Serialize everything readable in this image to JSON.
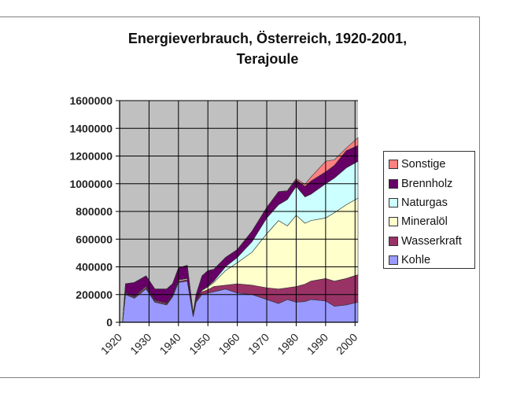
{
  "chart_data": {
    "type": "area",
    "stacked": true,
    "title": "Energieverbrauch, Österreich, 1920-2001, Terajoule",
    "title_lines": [
      "Energieverbrauch, Österreich, 1920-2001,",
      "Terajoule"
    ],
    "xlabel": "",
    "ylabel": "",
    "xlim": [
      1920,
      2001
    ],
    "ylim": [
      0,
      1600000
    ],
    "x_ticks": [
      "1920",
      "1930",
      "1940",
      "1950",
      "1960",
      "1970",
      "1980",
      "1990",
      "2000"
    ],
    "y_ticks": [
      "0",
      "200000",
      "400000",
      "600000",
      "800000",
      "1000000",
      "1200000",
      "1400000",
      "1600000"
    ],
    "grid": true,
    "plot_background": "#C0C0C0",
    "legend_position": "right",
    "x": [
      1920,
      1921,
      1922,
      1925,
      1929,
      1932,
      1936,
      1938,
      1940,
      1943,
      1945,
      1946,
      1948,
      1950,
      1952,
      1956,
      1960,
      1965,
      1970,
      1974,
      1977,
      1980,
      1983,
      1985,
      1990,
      1993,
      1997,
      2001
    ],
    "series": [
      {
        "name": "Kohle",
        "color": "#9999FF",
        "values": [
          0,
          0,
          200000,
          173000,
          240000,
          145000,
          125000,
          183000,
          287000,
          297000,
          40000,
          145000,
          200000,
          210000,
          220000,
          240000,
          211000,
          200000,
          164000,
          135000,
          164000,
          145000,
          150000,
          164000,
          154000,
          116000,
          125000,
          145000
        ]
      },
      {
        "name": "Wasserkraft",
        "color": "#993366",
        "values": [
          0,
          0,
          8000,
          8000,
          10000,
          8000,
          8000,
          8000,
          10000,
          10000,
          5000,
          8000,
          20000,
          25000,
          38000,
          28000,
          67000,
          68000,
          85000,
          105000,
          85000,
          113000,
          125000,
          133000,
          162000,
          181000,
          191000,
          199000
        ]
      },
      {
        "name": "Mineralöl",
        "color": "#FFFFCC",
        "values": [
          0,
          0,
          5000,
          5000,
          8000,
          5000,
          5000,
          5000,
          8000,
          8000,
          3000,
          5000,
          10000,
          20000,
          29000,
          105000,
          152000,
          238000,
          390000,
          494000,
          447000,
          514000,
          440000,
          437000,
          437000,
          494000,
          532000,
          552000
        ]
      },
      {
        "name": "Naturgas",
        "color": "#CCFFFF",
        "values": [
          0,
          0,
          0,
          0,
          0,
          0,
          0,
          0,
          0,
          0,
          0,
          0,
          3000,
          5000,
          10000,
          28000,
          38000,
          76000,
          114000,
          114000,
          190000,
          209000,
          190000,
          190000,
          247000,
          250000,
          266000,
          266000
        ]
      },
      {
        "name": "Brennholz",
        "color": "#660066",
        "values": [
          0,
          0,
          65000,
          101000,
          77000,
          82000,
          102000,
          82000,
          87000,
          96000,
          20000,
          43000,
          102000,
          113000,
          85000,
          67000,
          57000,
          76000,
          76000,
          95000,
          60000,
          48000,
          76000,
          95000,
          86000,
          92000,
          124000,
          114000
        ]
      },
      {
        "name": "Sonstige",
        "color": "#FF8080",
        "values": [
          0,
          0,
          0,
          0,
          0,
          0,
          0,
          0,
          0,
          0,
          0,
          0,
          0,
          0,
          0,
          0,
          0,
          0,
          0,
          0,
          5000,
          9000,
          15000,
          29000,
          76000,
          40000,
          19000,
          57000
        ]
      }
    ]
  }
}
